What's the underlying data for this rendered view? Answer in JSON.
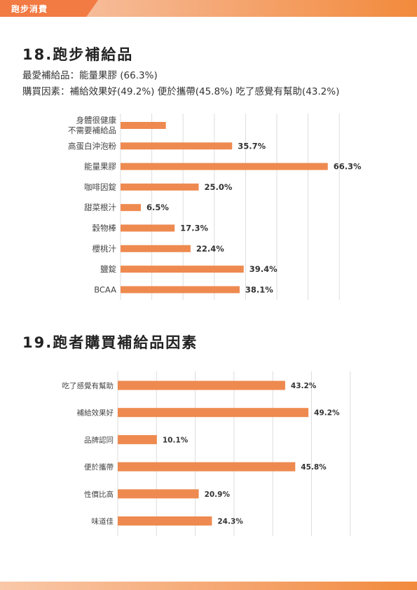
{
  "header": {
    "tab_label": "跑步消費"
  },
  "section18": {
    "title": "18.跑步補給品",
    "summary_line1": "最愛補給品：能量果膠 (66.3%)",
    "summary_line2": "購買因素：補給效果好(49.2%) 便於攜帶(45.8%) 吃了感覺有幫助(43.2%)"
  },
  "section19": {
    "title": "19.跑者購買補給品因素"
  },
  "colors": {
    "bar": "#ee8a50",
    "grid": "#dddddd",
    "accent": "#f27a43"
  },
  "chart_data": [
    {
      "type": "bar",
      "orientation": "horizontal",
      "categories": [
        [
          "身體很健康",
          "不需要補給品"
        ],
        "高蛋白沖泡粉",
        "能量果膠",
        "咖啡因錠",
        "甜菜根汁",
        "穀物棒",
        "櫻桃汁",
        "鹽錠",
        "BCAA"
      ],
      "values": [
        14.5,
        35.7,
        66.3,
        25.0,
        6.5,
        17.3,
        22.4,
        39.4,
        38.1
      ],
      "value_labels": [
        "",
        "35.7%",
        "66.3%",
        "25.0%",
        "6.5%",
        "17.3%",
        "22.4%",
        "39.4%",
        "38.1%"
      ],
      "xlim": [
        0,
        70
      ],
      "grid": true
    },
    {
      "type": "bar",
      "orientation": "horizontal",
      "categories": [
        "吃了感覺有幫助",
        "補給效果好",
        "品牌認同",
        "便於攜帶",
        "性價比高",
        "味道佳"
      ],
      "values": [
        43.2,
        49.2,
        10.1,
        45.8,
        20.9,
        24.3
      ],
      "value_labels": [
        "43.2%",
        "49.2%",
        "10.1%",
        "45.8%",
        "20.9%",
        "24.3%"
      ],
      "xlim": [
        0,
        60
      ],
      "grid": true
    }
  ]
}
